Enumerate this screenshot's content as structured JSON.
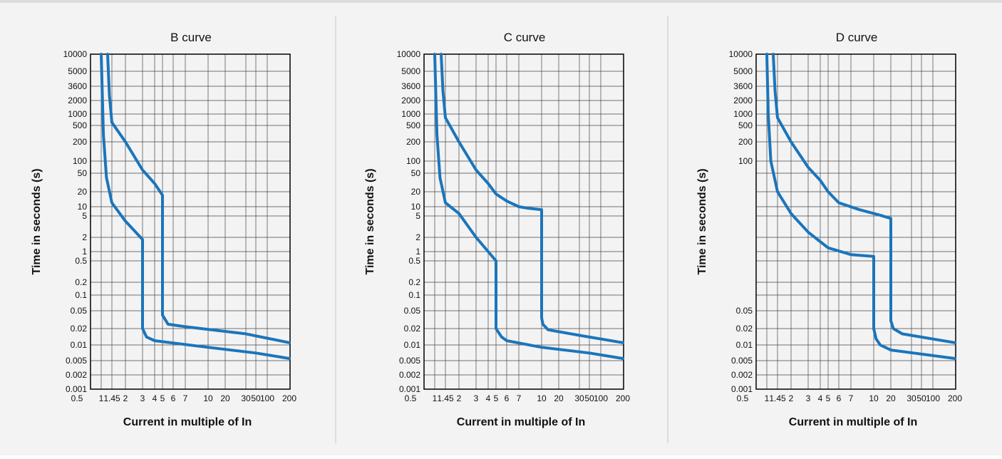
{
  "chart_data": [
    {
      "type": "line",
      "title": "B curve",
      "xlabel": "Current in multiple of In",
      "ylabel": "Time in seconds (s)",
      "x_ticks": [
        "0.5",
        "1",
        "1.45",
        "2",
        "3",
        "4",
        "5",
        "6",
        "7",
        "10",
        "20",
        "30",
        "50",
        "100",
        "200"
      ],
      "y_ticks": [
        "10000",
        "5000",
        "3600",
        "2000",
        "1000",
        "500",
        "200",
        "100",
        "50",
        "20",
        "10",
        "5",
        "2",
        "1",
        "0.5",
        "0.2",
        "0.1",
        "0.05",
        "0.02",
        "0.01",
        "0.005",
        "0.002",
        "0.001"
      ],
      "series": [
        {
          "values": [
            [
              1.0,
              10000
            ],
            [
              1.08,
              300
            ],
            [
              1.2,
              40
            ],
            [
              1.45,
              12
            ],
            [
              2,
              4
            ],
            [
              3,
              1.8
            ],
            [
              3,
              0.02
            ],
            [
              3.3,
              0.014
            ],
            [
              4,
              0.012
            ],
            [
              10,
              0.009
            ],
            [
              50,
              0.007
            ],
            [
              200,
              0.0055
            ]
          ]
        },
        {
          "values": [
            [
              1.25,
              10000
            ],
            [
              1.33,
              2500
            ],
            [
              1.45,
              600
            ],
            [
              2,
              200
            ],
            [
              3,
              60
            ],
            [
              4,
              30
            ],
            [
              5,
              17
            ],
            [
              5,
              0.04
            ],
            [
              5.5,
              0.025
            ],
            [
              7,
              0.022
            ],
            [
              30,
              0.016
            ],
            [
              200,
              0.011
            ]
          ]
        }
      ]
    },
    {
      "type": "line",
      "title": "C curve",
      "xlabel": "Current in multiple of In",
      "ylabel": "Time in seconds (s)",
      "x_ticks": [
        "0.5",
        "1",
        "1.45",
        "2",
        "3",
        "4",
        "5",
        "6",
        "7",
        "10",
        "20",
        "30",
        "50",
        "100",
        "200"
      ],
      "y_ticks": [
        "10000",
        "5000",
        "3600",
        "2000",
        "1000",
        "500",
        "200",
        "100",
        "50",
        "20",
        "10",
        "5",
        "2",
        "1",
        "0.5",
        "0.2",
        "0.1",
        "0.05",
        "0.02",
        "0.01",
        "0.005",
        "0.002",
        "0.001"
      ],
      "series": [
        {
          "values": [
            [
              1.0,
              10000
            ],
            [
              1.08,
              300
            ],
            [
              1.2,
              40
            ],
            [
              1.45,
              12
            ],
            [
              2,
              6
            ],
            [
              3,
              2
            ],
            [
              4,
              1
            ],
            [
              5,
              0.5
            ],
            [
              5,
              0.02
            ],
            [
              5.5,
              0.014
            ],
            [
              6,
              0.012
            ],
            [
              10,
              0.009
            ],
            [
              50,
              0.007
            ],
            [
              200,
              0.0055
            ]
          ]
        },
        {
          "values": [
            [
              1.25,
              10000
            ],
            [
              1.33,
              3000
            ],
            [
              1.45,
              800
            ],
            [
              2,
              200
            ],
            [
              3,
              60
            ],
            [
              4,
              30
            ],
            [
              5,
              18
            ],
            [
              6,
              13
            ],
            [
              7,
              10
            ],
            [
              8,
              9
            ],
            [
              10,
              8
            ],
            [
              10,
              0.035
            ],
            [
              10.5,
              0.025
            ],
            [
              13,
              0.019
            ],
            [
              30,
              0.015
            ],
            [
              200,
              0.011
            ]
          ]
        }
      ]
    },
    {
      "type": "line",
      "title": "D curve",
      "xlabel": "Current in multiple of In",
      "ylabel": "Time in seconds (s)",
      "x_ticks": [
        "0.5",
        "1",
        "1.45",
        "2",
        "3",
        "4",
        "5",
        "6",
        "7",
        "10",
        "20",
        "30",
        "50",
        "100",
        "200"
      ],
      "y_ticks": [
        "10000",
        "5000",
        "3600",
        "2000",
        "1000",
        "500",
        "200",
        "100",
        "0.05",
        "0.02",
        "0.01",
        "0.005",
        "0.002",
        "0.001"
      ],
      "series": [
        {
          "values": [
            [
              1.0,
              10000
            ],
            [
              1.05,
              1000
            ],
            [
              1.15,
              100
            ],
            [
              1.45,
              20
            ],
            [
              2,
              6
            ],
            [
              3,
              2.5
            ],
            [
              5,
              1.2
            ],
            [
              7,
              0.8
            ],
            [
              10,
              0.7
            ],
            [
              10,
              0.02
            ],
            [
              11,
              0.013
            ],
            [
              13,
              0.01
            ],
            [
              20,
              0.008
            ],
            [
              200,
              0.0055
            ]
          ]
        },
        {
          "values": [
            [
              1.25,
              10000
            ],
            [
              1.33,
              3000
            ],
            [
              1.45,
              800
            ],
            [
              2,
              200
            ],
            [
              3,
              70
            ],
            [
              4,
              35
            ],
            [
              5,
              20
            ],
            [
              6,
              12
            ],
            [
              8,
              8
            ],
            [
              12,
              5.5
            ],
            [
              20,
              4.5
            ],
            [
              20,
              0.03
            ],
            [
              21,
              0.02
            ],
            [
              25,
              0.016
            ],
            [
              200,
              0.011
            ]
          ]
        }
      ]
    }
  ],
  "style": {
    "line_color": "#1b75bb",
    "grid_color": "#444444",
    "frame_color": "#000000",
    "background": "#f3f3f3"
  }
}
